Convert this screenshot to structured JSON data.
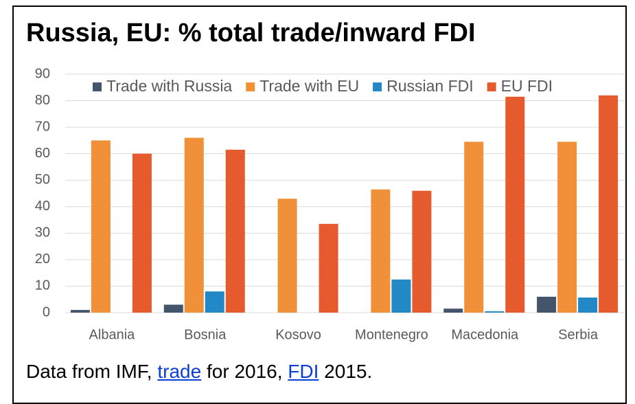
{
  "chart_data": {
    "type": "bar",
    "title": "Russia, EU: % total trade/inward FDI",
    "categories": [
      "Albania",
      "Bosnia",
      "Kosovo",
      "Montenegro",
      "Macedonia",
      "Serbia"
    ],
    "series": [
      {
        "name": "Trade with Russia",
        "color": "#44546a",
        "values": [
          1,
          3,
          null,
          null,
          1.5,
          6
        ]
      },
      {
        "name": "Trade with EU",
        "color": "#f0913a",
        "values": [
          65,
          66,
          43,
          46.5,
          64.5,
          64.5
        ]
      },
      {
        "name": "Russian FDI",
        "color": "#2389c6",
        "values": [
          null,
          8,
          null,
          12.5,
          0.5,
          5.7
        ]
      },
      {
        "name": "EU FDI",
        "color": "#e55b2d",
        "values": [
          60,
          61.5,
          33.5,
          46,
          81.5,
          82
        ]
      }
    ],
    "ylim": [
      0,
      90
    ],
    "yticks": [
      0,
      10,
      20,
      30,
      40,
      50,
      60,
      70,
      80,
      90
    ],
    "grid": true,
    "legend": "top"
  },
  "caption": {
    "parts": [
      "Data from IMF, ",
      "trade",
      " for 2016, ",
      "FDI",
      " 2015."
    ]
  }
}
